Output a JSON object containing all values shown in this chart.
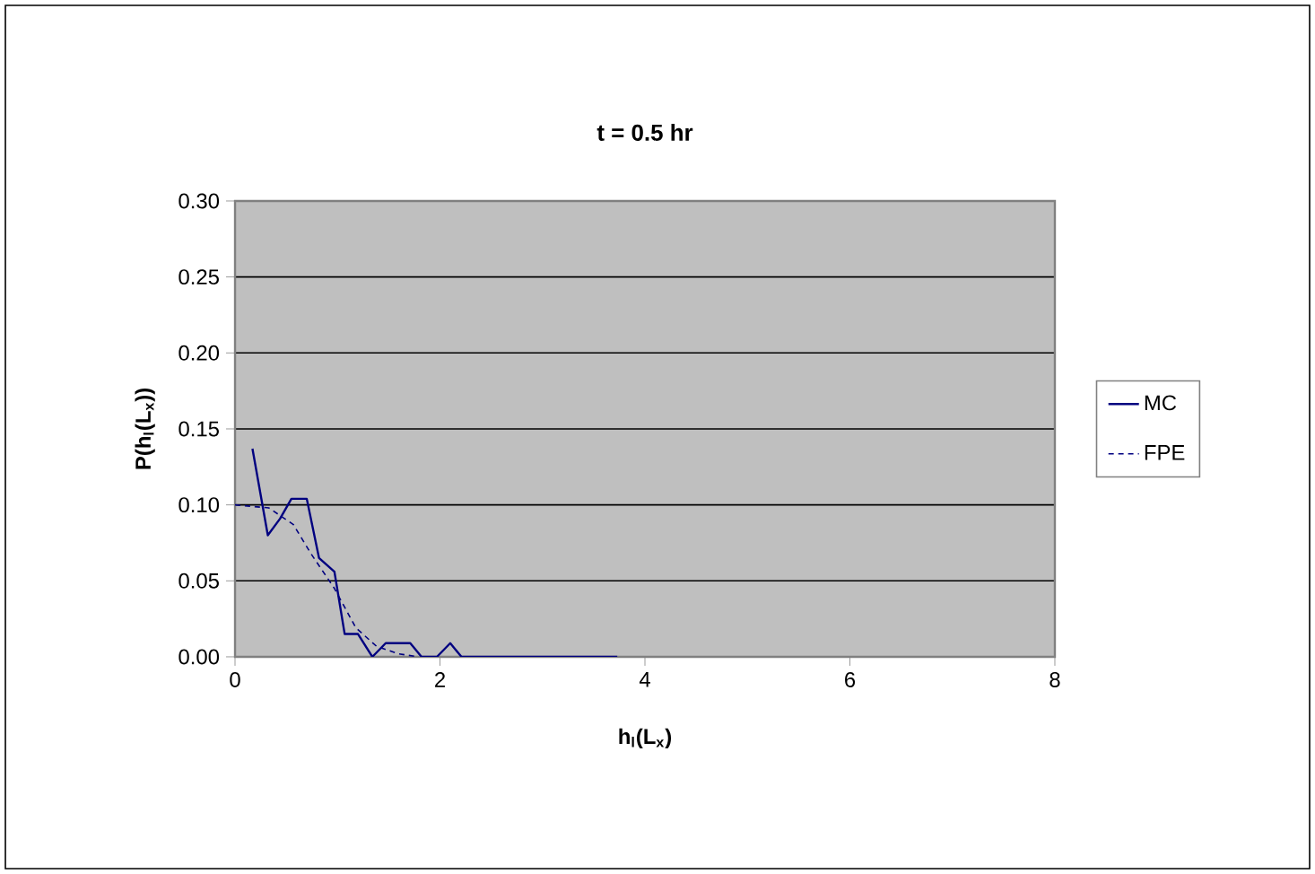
{
  "chart_data": {
    "type": "line",
    "title": "t = 0.5 hr",
    "xlabel": "h$_{l}$(L$_{x}$)",
    "ylabel": "P(h$_{l}$(L$_{x}$))",
    "xlim": [
      0,
      8
    ],
    "xticks": [
      0,
      2,
      4,
      6,
      8
    ],
    "ylim": [
      0,
      0.3
    ],
    "yticks": [
      {
        "value": 0,
        "label": "0.00"
      },
      {
        "value": 0.05,
        "label": "0.05"
      },
      {
        "value": 0.1,
        "label": "0.10"
      },
      {
        "value": 0.15,
        "label": "0.15"
      },
      {
        "value": 0.2,
        "label": "0.20"
      },
      {
        "value": 0.25,
        "label": "0.25"
      },
      {
        "value": 0.3,
        "label": "0.30"
      }
    ],
    "grid": "y",
    "legend": "right",
    "series": [
      {
        "name": "MC",
        "color": "#000080",
        "line_style": "solid",
        "x": [
          0.17,
          0.32,
          0.44,
          0.55,
          0.7,
          0.82,
          0.97,
          1.07,
          1.2,
          1.34,
          1.47,
          1.71,
          1.82,
          1.97,
          2.1,
          2.21,
          3.73
        ],
        "values": [
          0.137,
          0.08,
          0.091,
          0.104,
          0.104,
          0.065,
          0.056,
          0.015,
          0.015,
          0,
          0.009,
          0.009,
          0,
          0,
          0.009,
          0,
          0
        ]
      },
      {
        "name": "FPE",
        "color": "#000080",
        "line_style": "dashed",
        "x": [
          0,
          0.33,
          0.57,
          0.74,
          0.97,
          1.18,
          1.38,
          1.59,
          1.79
        ],
        "values": [
          0.1,
          0.098,
          0.087,
          0.068,
          0.045,
          0.019,
          0.007,
          0.002,
          0
        ]
      }
    ]
  }
}
